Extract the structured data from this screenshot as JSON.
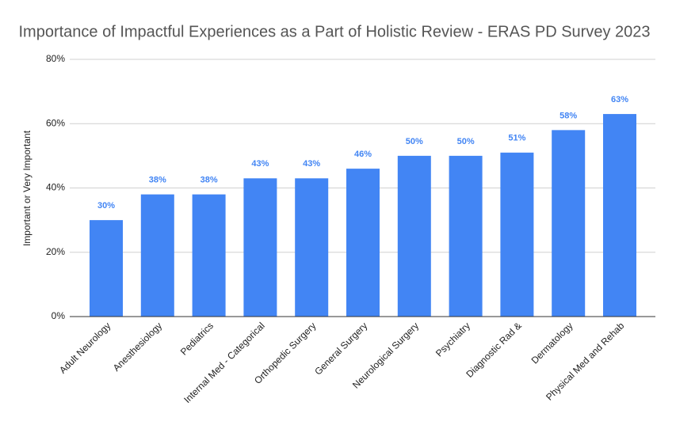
{
  "chart_data": {
    "type": "bar",
    "title": "Importance of Impactful Experiences as a Part of Holistic Review - ERAS PD Survey 2023",
    "y_label": "Important or Very Important",
    "categories": [
      "Adult Neurology",
      "Anesthesiology",
      "Pediatrics",
      "Internal Med - Categorical",
      "Orthopedic Surgery",
      "General Surgery",
      "Neurological Surgery",
      "Psychiatry",
      "Diagnostic Rad &",
      "Dermatology",
      "Physical Med and Rehab"
    ],
    "values": [
      30,
      38,
      38,
      43,
      43,
      46,
      50,
      50,
      51,
      58,
      63
    ],
    "value_labels": [
      "30%",
      "38%",
      "38%",
      "43%",
      "43%",
      "46%",
      "50%",
      "50%",
      "51%",
      "58%",
      "63%"
    ],
    "color": "#4285f4",
    "ylim": [
      0,
      80
    ],
    "yticks": [
      {
        "value": 0,
        "label": "0%"
      },
      {
        "value": 20,
        "label": "20%"
      },
      {
        "value": 40,
        "label": "40%"
      },
      {
        "value": 60,
        "label": "60%"
      },
      {
        "value": 80,
        "label": "80%"
      }
    ],
    "grid": true
  }
}
